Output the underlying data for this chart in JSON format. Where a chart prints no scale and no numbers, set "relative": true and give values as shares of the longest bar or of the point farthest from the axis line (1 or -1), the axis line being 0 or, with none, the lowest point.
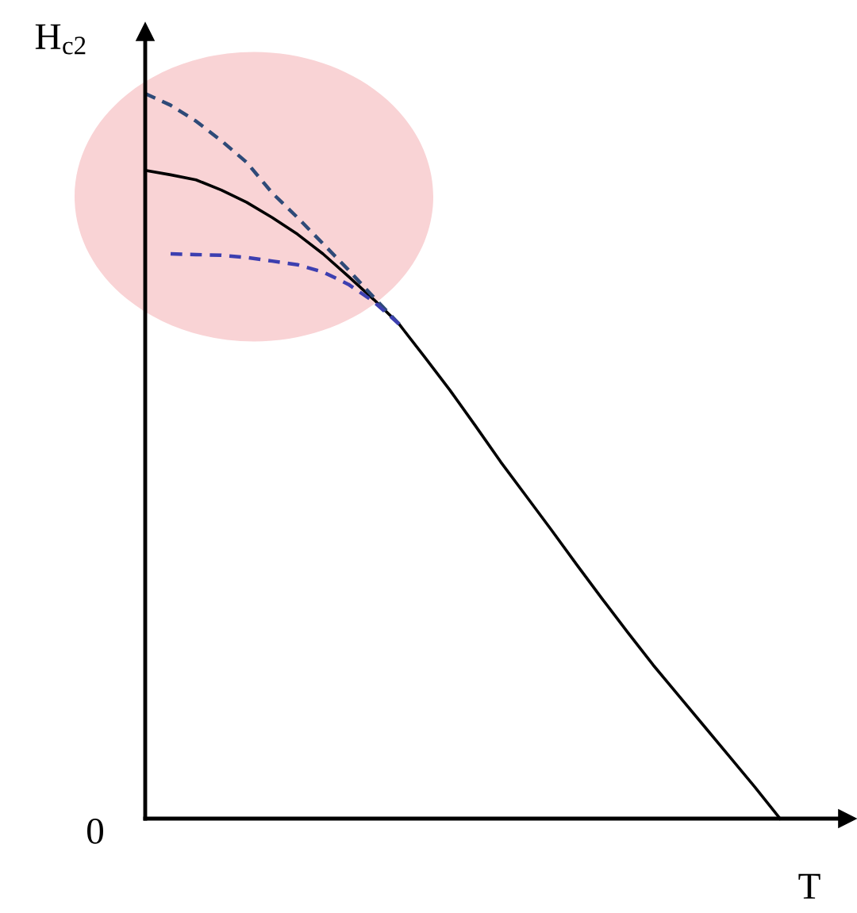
{
  "chart_data": {
    "type": "line",
    "relative": true,
    "xlabel": "T",
    "ylabel": "H$_{c2}$",
    "annotations": [
      "0"
    ],
    "categories": [
      null,
      null,
      null,
      null,
      null,
      null,
      null,
      null,
      null,
      null,
      null,
      null,
      null,
      null,
      null,
      null,
      null,
      null,
      null,
      null,
      null,
      null,
      null,
      null,
      null,
      null
    ],
    "series": [
      {
        "color": "#000000",
        "line_style": "solid",
        "values": [
          0.894,
          0.888,
          0.881,
          0.867,
          0.85,
          0.829,
          0.806,
          0.779,
          0.748,
          0.716,
          0.682,
          0.637,
          0.591,
          0.542,
          0.492,
          0.445,
          0.398,
          0.35,
          0.303,
          0.257,
          0.212,
          0.17,
          0.128,
          0.086,
          0.044,
          0
        ]
      },
      {
        "color": "#2e4a78",
        "line_style": "dashed",
        "values": [
          1.0,
          0.984,
          0.962,
          0.935,
          0.905,
          0.863,
          0.829,
          0.793,
          0.757,
          0.719,
          0.682,
          null,
          null,
          null,
          null,
          null,
          null,
          null,
          null,
          null,
          null,
          null,
          null,
          null,
          null,
          null
        ]
      },
      {
        "color": "#3d3fb0",
        "line_style": "dashed",
        "values": [
          null,
          0.779,
          0.778,
          0.777,
          0.774,
          0.769,
          0.764,
          0.754,
          0.737,
          0.713,
          0.682,
          null,
          null,
          null,
          null,
          null,
          null,
          null,
          null,
          null,
          null,
          null,
          null,
          null,
          null,
          null
        ]
      }
    ]
  }
}
